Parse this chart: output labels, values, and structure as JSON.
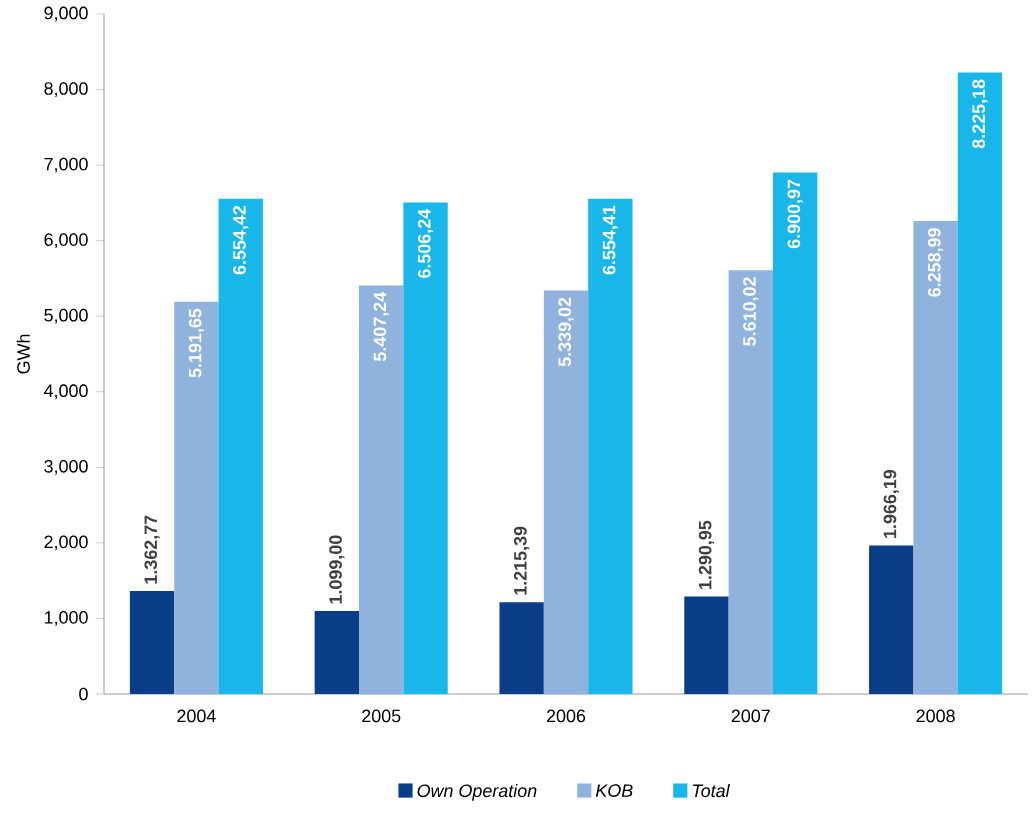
{
  "chart_data": {
    "type": "bar",
    "ylabel": "GWh",
    "categories": [
      "2004",
      "2005",
      "2006",
      "2007",
      "2008"
    ],
    "series": [
      {
        "name": "Own Operation",
        "color": "#0a3d87",
        "values": [
          1362.77,
          1099.0,
          1215.39,
          1290.95,
          1966.19
        ],
        "value_labels": [
          "1.362,77",
          "1.099,00",
          "1.215,39",
          "1.290,95",
          "1.966,19"
        ]
      },
      {
        "name": "KOB",
        "color": "#8fb3dc",
        "values": [
          5191.65,
          5407.24,
          5339.02,
          5610.02,
          6258.99
        ],
        "value_labels": [
          "5.191,65",
          "5.407,24",
          "5.339,02",
          "5.610,02",
          "6.258,99"
        ]
      },
      {
        "name": "Total",
        "color": "#19b6ea",
        "values": [
          6554.42,
          6506.24,
          6554.41,
          6900.97,
          8225.18
        ],
        "value_labels": [
          "6.554,42",
          "6.506,24",
          "6.554,41",
          "6.900,97",
          "8.225,18"
        ]
      }
    ],
    "ylim": [
      0,
      9000
    ],
    "yticks": [
      0,
      {
        "value": 1000,
        "label": "1,000"
      },
      {
        "value": 2000,
        "label": "2,000"
      },
      {
        "value": 3000,
        "label": "3,000"
      },
      {
        "value": 4000,
        "label": "4,000"
      },
      {
        "value": 5000,
        "label": "5,000"
      },
      {
        "value": 6000,
        "label": "6,000"
      },
      {
        "value": 7000,
        "label": "7,000"
      },
      {
        "value": 8000,
        "label": "8,000"
      },
      {
        "value": 9000,
        "label": "9,000"
      }
    ],
    "legend": "bottom",
    "grid": false
  }
}
